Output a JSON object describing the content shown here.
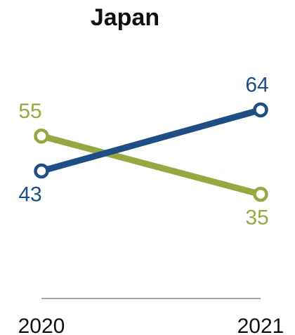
{
  "chart_data": {
    "type": "line",
    "title": "Japan",
    "categories": [
      "2020",
      "2021"
    ],
    "series": [
      {
        "values": [
          43,
          64
        ],
        "color": "#1f4e84"
      },
      {
        "values": [
          55,
          35
        ],
        "color": "#97a843"
      }
    ],
    "data_labels": {
      "series_0": [
        "43",
        "64"
      ],
      "series_1": [
        "55",
        "35"
      ]
    },
    "ylim": [
      0,
      100
    ],
    "grid": false,
    "legend": "none"
  }
}
